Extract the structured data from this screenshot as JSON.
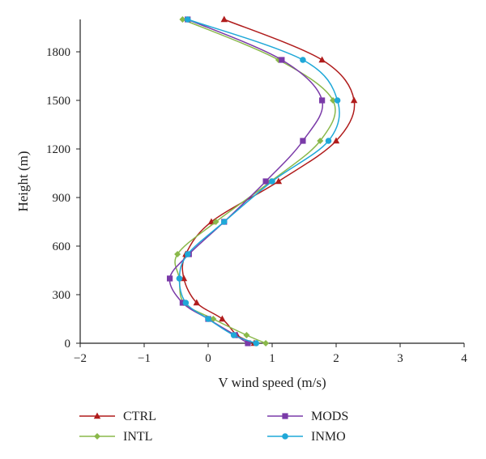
{
  "chart_data": {
    "type": "line",
    "xlabel": "V wind speed (m/s)",
    "ylabel": "Height (m)",
    "xlim": [
      -2,
      4
    ],
    "ylim": [
      0,
      2000
    ],
    "xticks": [
      -2,
      -1,
      0,
      1,
      2,
      3,
      4
    ],
    "yticks": [
      0,
      300,
      600,
      900,
      1200,
      1500,
      1800
    ],
    "x_tick_labels": [
      "−2",
      "−1",
      "0",
      "1",
      "2",
      "3",
      "4"
    ],
    "y_tick_labels": [
      "0",
      "300",
      "600",
      "900",
      "1200",
      "1500",
      "1800"
    ],
    "grid": false,
    "legend_position": "bottom",
    "series": [
      {
        "name": "CTRL",
        "color": "#b01c1c",
        "marker": "triangle",
        "points": [
          {
            "x": 0.72,
            "y": 0
          },
          {
            "x": 0.45,
            "y": 50
          },
          {
            "x": 0.22,
            "y": 150
          },
          {
            "x": -0.18,
            "y": 250
          },
          {
            "x": -0.38,
            "y": 400
          },
          {
            "x": -0.35,
            "y": 550
          },
          {
            "x": 0.05,
            "y": 750
          },
          {
            "x": 1.1,
            "y": 1000
          },
          {
            "x": 2.0,
            "y": 1250
          },
          {
            "x": 2.28,
            "y": 1500
          },
          {
            "x": 1.78,
            "y": 1750
          },
          {
            "x": 0.25,
            "y": 2000
          }
        ]
      },
      {
        "name": "INTL",
        "color": "#8ab84a",
        "marker": "diamond",
        "points": [
          {
            "x": 0.9,
            "y": 0
          },
          {
            "x": 0.6,
            "y": 50
          },
          {
            "x": 0.08,
            "y": 150
          },
          {
            "x": -0.38,
            "y": 250
          },
          {
            "x": -0.45,
            "y": 400
          },
          {
            "x": -0.48,
            "y": 550
          },
          {
            "x": 0.12,
            "y": 750
          },
          {
            "x": 0.98,
            "y": 1000
          },
          {
            "x": 1.75,
            "y": 1250
          },
          {
            "x": 1.95,
            "y": 1500
          },
          {
            "x": 1.1,
            "y": 1750
          },
          {
            "x": -0.4,
            "y": 2000
          }
        ]
      },
      {
        "name": "MODS",
        "color": "#7a3aa8",
        "marker": "square",
        "points": [
          {
            "x": 0.62,
            "y": 0
          },
          {
            "x": 0.42,
            "y": 50
          },
          {
            "x": 0.0,
            "y": 150
          },
          {
            "x": -0.4,
            "y": 250
          },
          {
            "x": -0.6,
            "y": 400
          },
          {
            "x": -0.3,
            "y": 550
          },
          {
            "x": 0.25,
            "y": 750
          },
          {
            "x": 0.9,
            "y": 1000
          },
          {
            "x": 1.48,
            "y": 1250
          },
          {
            "x": 1.78,
            "y": 1500
          },
          {
            "x": 1.15,
            "y": 1750
          },
          {
            "x": -0.32,
            "y": 2000
          }
        ]
      },
      {
        "name": "INMO",
        "color": "#1fa8d8",
        "marker": "circle",
        "points": [
          {
            "x": 0.75,
            "y": 0
          },
          {
            "x": 0.4,
            "y": 50
          },
          {
            "x": 0.0,
            "y": 150
          },
          {
            "x": -0.35,
            "y": 250
          },
          {
            "x": -0.45,
            "y": 400
          },
          {
            "x": -0.32,
            "y": 550
          },
          {
            "x": 0.25,
            "y": 750
          },
          {
            "x": 1.0,
            "y": 1000
          },
          {
            "x": 1.88,
            "y": 1250
          },
          {
            "x": 2.02,
            "y": 1500
          },
          {
            "x": 1.48,
            "y": 1750
          },
          {
            "x": -0.32,
            "y": 2000
          }
        ]
      }
    ]
  }
}
